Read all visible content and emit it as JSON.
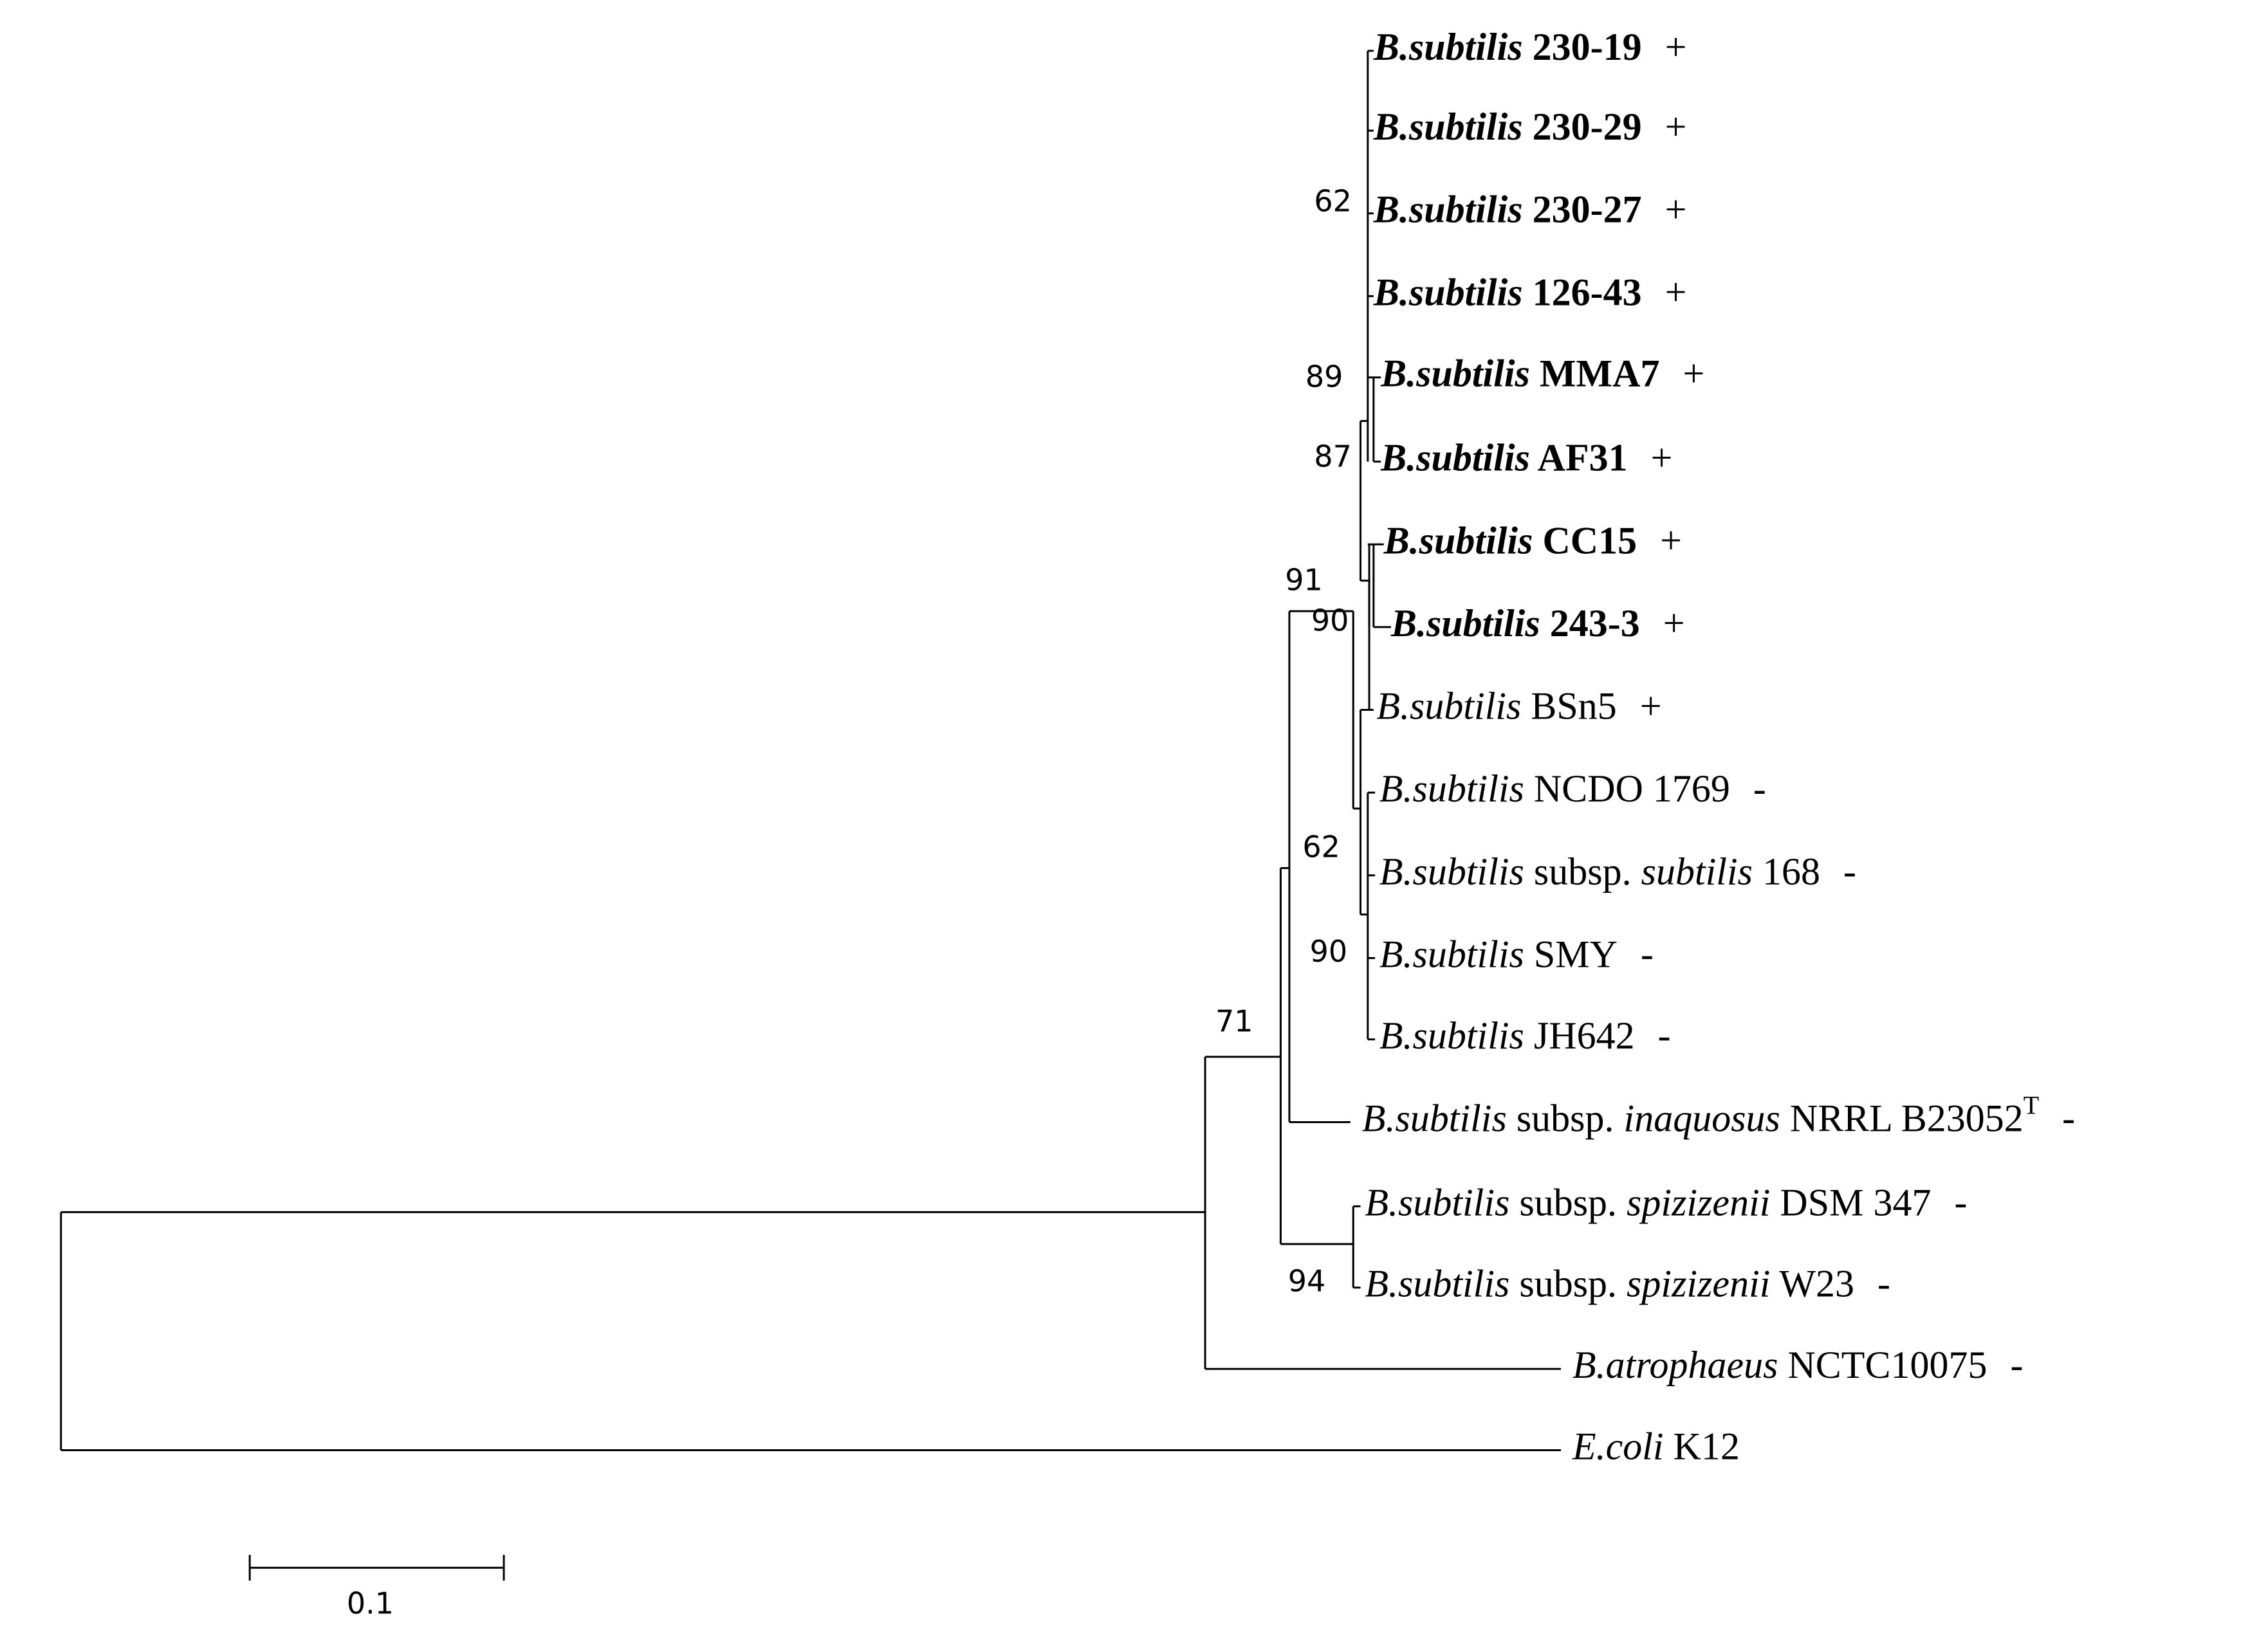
{
  "taxa": [
    {
      "id": "t1",
      "genus": "B.subtilis",
      "subsp_word": "",
      "subsp": "",
      "strain": "230-19",
      "sup": "",
      "bold": true,
      "growth": "+"
    },
    {
      "id": "t2",
      "genus": "B.subtilis",
      "subsp_word": "",
      "subsp": "",
      "strain": "230-29",
      "sup": "",
      "bold": true,
      "growth": "+"
    },
    {
      "id": "t3",
      "genus": "B.subtilis",
      "subsp_word": "",
      "subsp": "",
      "strain": "230-27",
      "sup": "",
      "bold": true,
      "growth": "+"
    },
    {
      "id": "t4",
      "genus": "B.subtilis",
      "subsp_word": "",
      "subsp": "",
      "strain": "126-43",
      "sup": "",
      "bold": true,
      "growth": "+"
    },
    {
      "id": "t5",
      "genus": "B.subtilis",
      "subsp_word": "",
      "subsp": "",
      "strain": "MMA7",
      "sup": "",
      "bold": true,
      "growth": "+"
    },
    {
      "id": "t6",
      "genus": "B.subtilis",
      "subsp_word": "",
      "subsp": "",
      "strain": "AF31",
      "sup": "",
      "bold": true,
      "growth": "+"
    },
    {
      "id": "t7",
      "genus": "B.subtilis",
      "subsp_word": "",
      "subsp": "",
      "strain": "CC15",
      "sup": "",
      "bold": true,
      "growth": "+"
    },
    {
      "id": "t8",
      "genus": "B.subtilis",
      "subsp_word": "",
      "subsp": "",
      "strain": "243-3",
      "sup": "",
      "bold": true,
      "growth": "+"
    },
    {
      "id": "t9",
      "genus": "B.subtilis",
      "subsp_word": "",
      "subsp": "",
      "strain": "BSn5",
      "sup": "",
      "bold": false,
      "growth": "+"
    },
    {
      "id": "t10",
      "genus": "B.subtilis",
      "subsp_word": "",
      "subsp": "",
      "strain": "NCDO 1769",
      "sup": "",
      "bold": false,
      "growth": "-"
    },
    {
      "id": "t11",
      "genus": "B.subtilis",
      "subsp_word": "subsp.",
      "subsp": "subtilis",
      "strain": "168",
      "sup": "",
      "bold": false,
      "growth": "-"
    },
    {
      "id": "t12",
      "genus": "B.subtilis",
      "subsp_word": "",
      "subsp": "",
      "strain": "SMY",
      "sup": "",
      "bold": false,
      "growth": "-"
    },
    {
      "id": "t13",
      "genus": "B.subtilis",
      "subsp_word": "",
      "subsp": "",
      "strain": "JH642",
      "sup": "",
      "bold": false,
      "growth": "-"
    },
    {
      "id": "t14",
      "genus": "B.subtilis",
      "subsp_word": "subsp.",
      "subsp": "inaquosus",
      "strain": "NRRL B23052",
      "sup": "T",
      "bold": false,
      "growth": "-"
    },
    {
      "id": "t15",
      "genus": "B.subtilis",
      "subsp_word": "subsp.",
      "subsp": "spizizenii",
      "strain": "DSM 347",
      "sup": "",
      "bold": false,
      "growth": "-"
    },
    {
      "id": "t16",
      "genus": "B.subtilis",
      "subsp_word": "subsp.",
      "subsp": "spizizenii",
      "strain": "W23",
      "sup": "",
      "bold": false,
      "growth": "-"
    },
    {
      "id": "t17",
      "genus": "B.atrophaeus",
      "subsp_word": "",
      "subsp": "",
      "strain": "NCTC10075",
      "sup": "",
      "bold": false,
      "growth": "-"
    },
    {
      "id": "t18",
      "genus": "E.coli",
      "subsp_word": "",
      "subsp": "",
      "strain": "K12",
      "sup": "",
      "bold": false,
      "growth": ""
    }
  ],
  "bootstrap": [
    "62",
    "89",
    "87",
    "91",
    "90",
    "62",
    "90",
    "71",
    "94"
  ],
  "scale_bar": {
    "value": 0.1,
    "label": "0.1"
  }
}
